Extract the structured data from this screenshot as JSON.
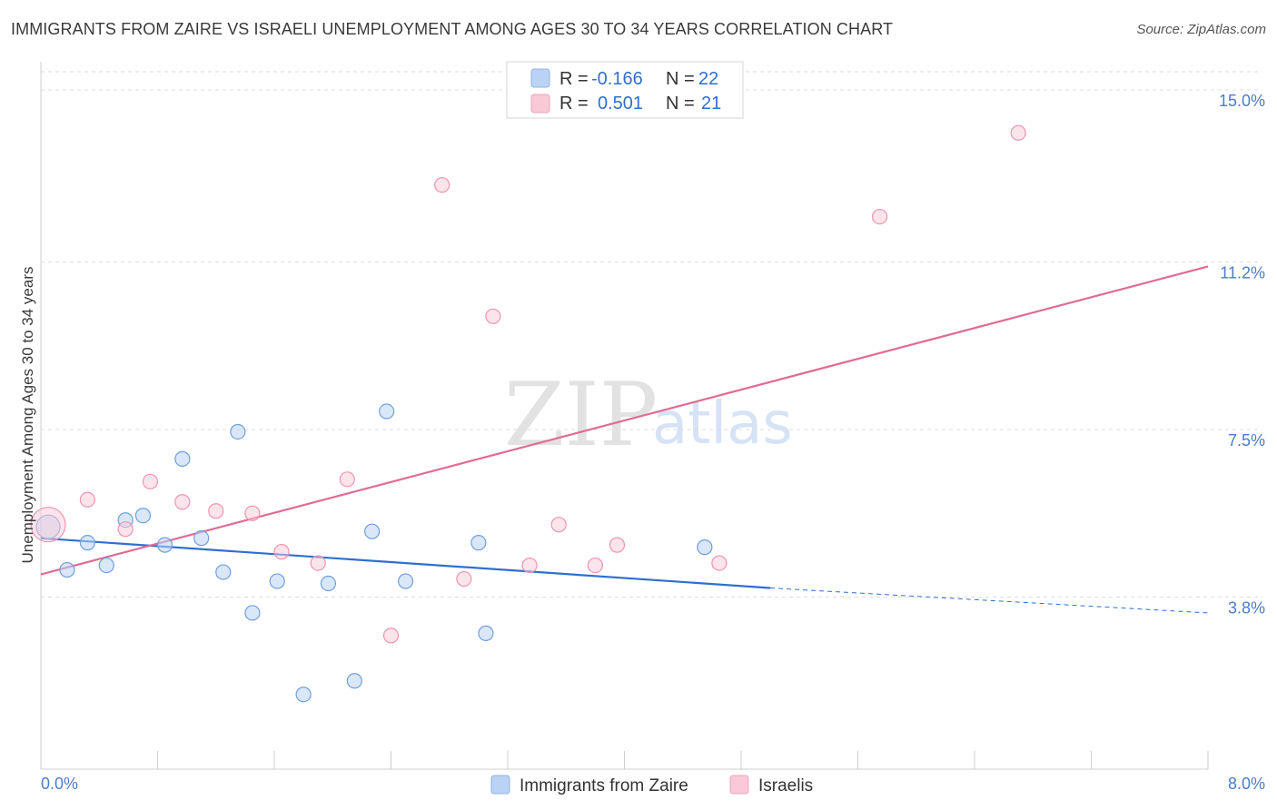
{
  "title": "IMMIGRANTS FROM ZAIRE VS ISRAELI UNEMPLOYMENT AMONG AGES 30 TO 34 YEARS CORRELATION CHART",
  "source": "Source: ZipAtlas.com",
  "watermark": {
    "zip": "ZIP",
    "atlas": "atlas"
  },
  "legend": {
    "r_label": "R =",
    "n_label": "N =",
    "rows": [
      {
        "r": "-0.166",
        "n": "22"
      },
      {
        "r": "0.501",
        "n": "21"
      }
    ]
  },
  "chart_data": {
    "type": "scatter",
    "title": "IMMIGRANTS FROM ZAIRE VS ISRAELI UNEMPLOYMENT AMONG AGES 30 TO 34 YEARS CORRELATION CHART",
    "xlabel": "",
    "ylabel": "Unemployment Among Ages 30 to 34 years",
    "xlim": [
      0,
      8
    ],
    "ylim": [
      0,
      15.4
    ],
    "x_tick_labels": [
      "0.0%",
      "8.0%"
    ],
    "y_ticks": [
      3.8,
      7.5,
      11.2,
      15.0
    ],
    "y_tick_labels": [
      "3.8%",
      "7.5%",
      "11.2%",
      "15.0%"
    ],
    "grid": true,
    "series": [
      {
        "name": "Immigrants from Zaire",
        "color": "#9dc0ee",
        "trend": {
          "x0": 0.0,
          "y0": 5.1,
          "x1": 5.0,
          "y1": 4.0,
          "dashed_to_x": 8.0,
          "dashed_to_y": 3.45,
          "color": "#2f6fd1"
        },
        "points": [
          [
            0.05,
            5.35
          ],
          [
            0.18,
            4.4
          ],
          [
            0.32,
            5.0
          ],
          [
            0.45,
            4.5
          ],
          [
            0.58,
            5.5
          ],
          [
            0.7,
            5.6
          ],
          [
            0.85,
            4.95
          ],
          [
            0.97,
            6.85
          ],
          [
            1.1,
            5.1
          ],
          [
            1.25,
            4.35
          ],
          [
            1.35,
            7.45
          ],
          [
            1.45,
            3.45
          ],
          [
            1.62,
            4.15
          ],
          [
            1.8,
            1.65
          ],
          [
            1.97,
            4.1
          ],
          [
            2.15,
            1.95
          ],
          [
            2.27,
            5.25
          ],
          [
            2.37,
            7.9
          ],
          [
            2.5,
            4.15
          ],
          [
            3.0,
            5.0
          ],
          [
            3.05,
            3.0
          ],
          [
            4.55,
            4.9
          ]
        ]
      },
      {
        "name": "Israelis",
        "color": "#f6b6c9",
        "trend": {
          "x0": 0.0,
          "y0": 4.3,
          "x1": 8.0,
          "y1": 11.1,
          "color": "#e06b93"
        },
        "points": [
          [
            0.05,
            5.4
          ],
          [
            0.32,
            5.95
          ],
          [
            0.58,
            5.3
          ],
          [
            0.75,
            6.35
          ],
          [
            0.97,
            5.9
          ],
          [
            1.2,
            5.7
          ],
          [
            1.45,
            5.65
          ],
          [
            1.65,
            4.8
          ],
          [
            1.9,
            4.55
          ],
          [
            2.1,
            6.4
          ],
          [
            2.4,
            2.95
          ],
          [
            2.75,
            12.9
          ],
          [
            2.9,
            4.2
          ],
          [
            3.1,
            10.0
          ],
          [
            3.35,
            4.5
          ],
          [
            3.55,
            5.4
          ],
          [
            3.8,
            4.5
          ],
          [
            3.95,
            4.95
          ],
          [
            4.65,
            4.55
          ],
          [
            5.75,
            12.2
          ],
          [
            6.7,
            14.05
          ]
        ]
      }
    ]
  }
}
